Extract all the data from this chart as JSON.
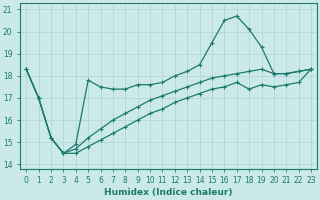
{
  "xlabel": "Humidex (Indice chaleur)",
  "ylabel": "",
  "bg_color": "#cce9e9",
  "line_color": "#1a7a6e",
  "grid_color": "#aad4d4",
  "xlim": [
    -0.5,
    23.5
  ],
  "ylim": [
    13.8,
    21.3
  ],
  "yticks": [
    14,
    15,
    16,
    17,
    18,
    19,
    20,
    21
  ],
  "xticks": [
    0,
    1,
    2,
    3,
    4,
    5,
    6,
    7,
    8,
    9,
    10,
    11,
    12,
    13,
    14,
    15,
    16,
    17,
    18,
    19,
    20,
    21,
    22,
    23
  ],
  "series": [
    [
      18.3,
      17.0,
      15.2,
      14.5,
      14.9,
      17.8,
      17.5,
      17.4,
      17.4,
      17.6,
      17.6,
      17.7,
      18.0,
      18.2,
      18.5,
      19.5,
      20.5,
      20.7,
      20.1,
      19.3,
      18.1,
      18.1,
      18.2,
      18.3
    ],
    [
      18.3,
      17.0,
      15.2,
      14.5,
      14.7,
      15.2,
      15.6,
      16.0,
      16.3,
      16.6,
      16.9,
      17.1,
      17.3,
      17.5,
      17.7,
      17.9,
      18.0,
      18.1,
      18.2,
      18.3,
      18.1,
      18.1,
      18.2,
      18.3
    ],
    [
      18.3,
      17.0,
      15.2,
      14.5,
      14.5,
      14.8,
      15.1,
      15.4,
      15.7,
      16.0,
      16.3,
      16.5,
      16.8,
      17.0,
      17.2,
      17.4,
      17.5,
      17.7,
      17.4,
      17.6,
      17.5,
      17.6,
      17.7,
      18.3
    ]
  ],
  "marker": "+",
  "markersize": 3,
  "linewidth": 0.9
}
